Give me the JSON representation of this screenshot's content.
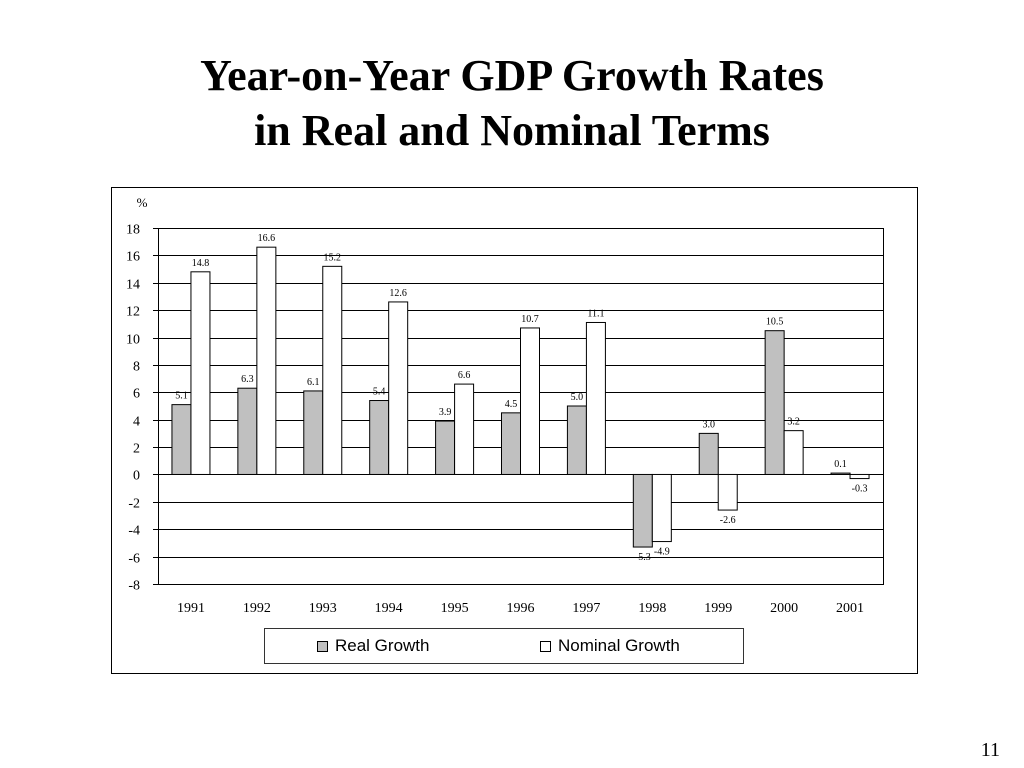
{
  "slide": {
    "page_number": "11"
  },
  "chart_data": {
    "type": "bar",
    "title": "Year-on-Year GDP Growth Rates\nin Real and Nominal Terms",
    "xlabel": "",
    "ylabel": "%",
    "categories": [
      "1991",
      "1992",
      "1993",
      "1994",
      "1995",
      "1996",
      "1997",
      "1998",
      "1999",
      "2000",
      "2001"
    ],
    "series": [
      {
        "name": "Real Growth",
        "values": [
          5.1,
          6.3,
          6.1,
          5.4,
          3.9,
          4.5,
          5.0,
          -5.3,
          3.0,
          10.5,
          0.1
        ],
        "color": "#c0c0c0"
      },
      {
        "name": "Nominal Growth",
        "values": [
          14.8,
          16.6,
          15.2,
          12.6,
          6.6,
          10.7,
          11.1,
          -4.9,
          -2.6,
          3.2,
          -0.3
        ],
        "color": "#ffffff"
      }
    ],
    "ylim": [
      -8,
      18
    ],
    "yticks": [
      18,
      16,
      14,
      12,
      10,
      8,
      6,
      4,
      2,
      0,
      -2,
      -4,
      -6,
      -8
    ],
    "data_labels": true,
    "grid": true,
    "legend": "bottom"
  }
}
